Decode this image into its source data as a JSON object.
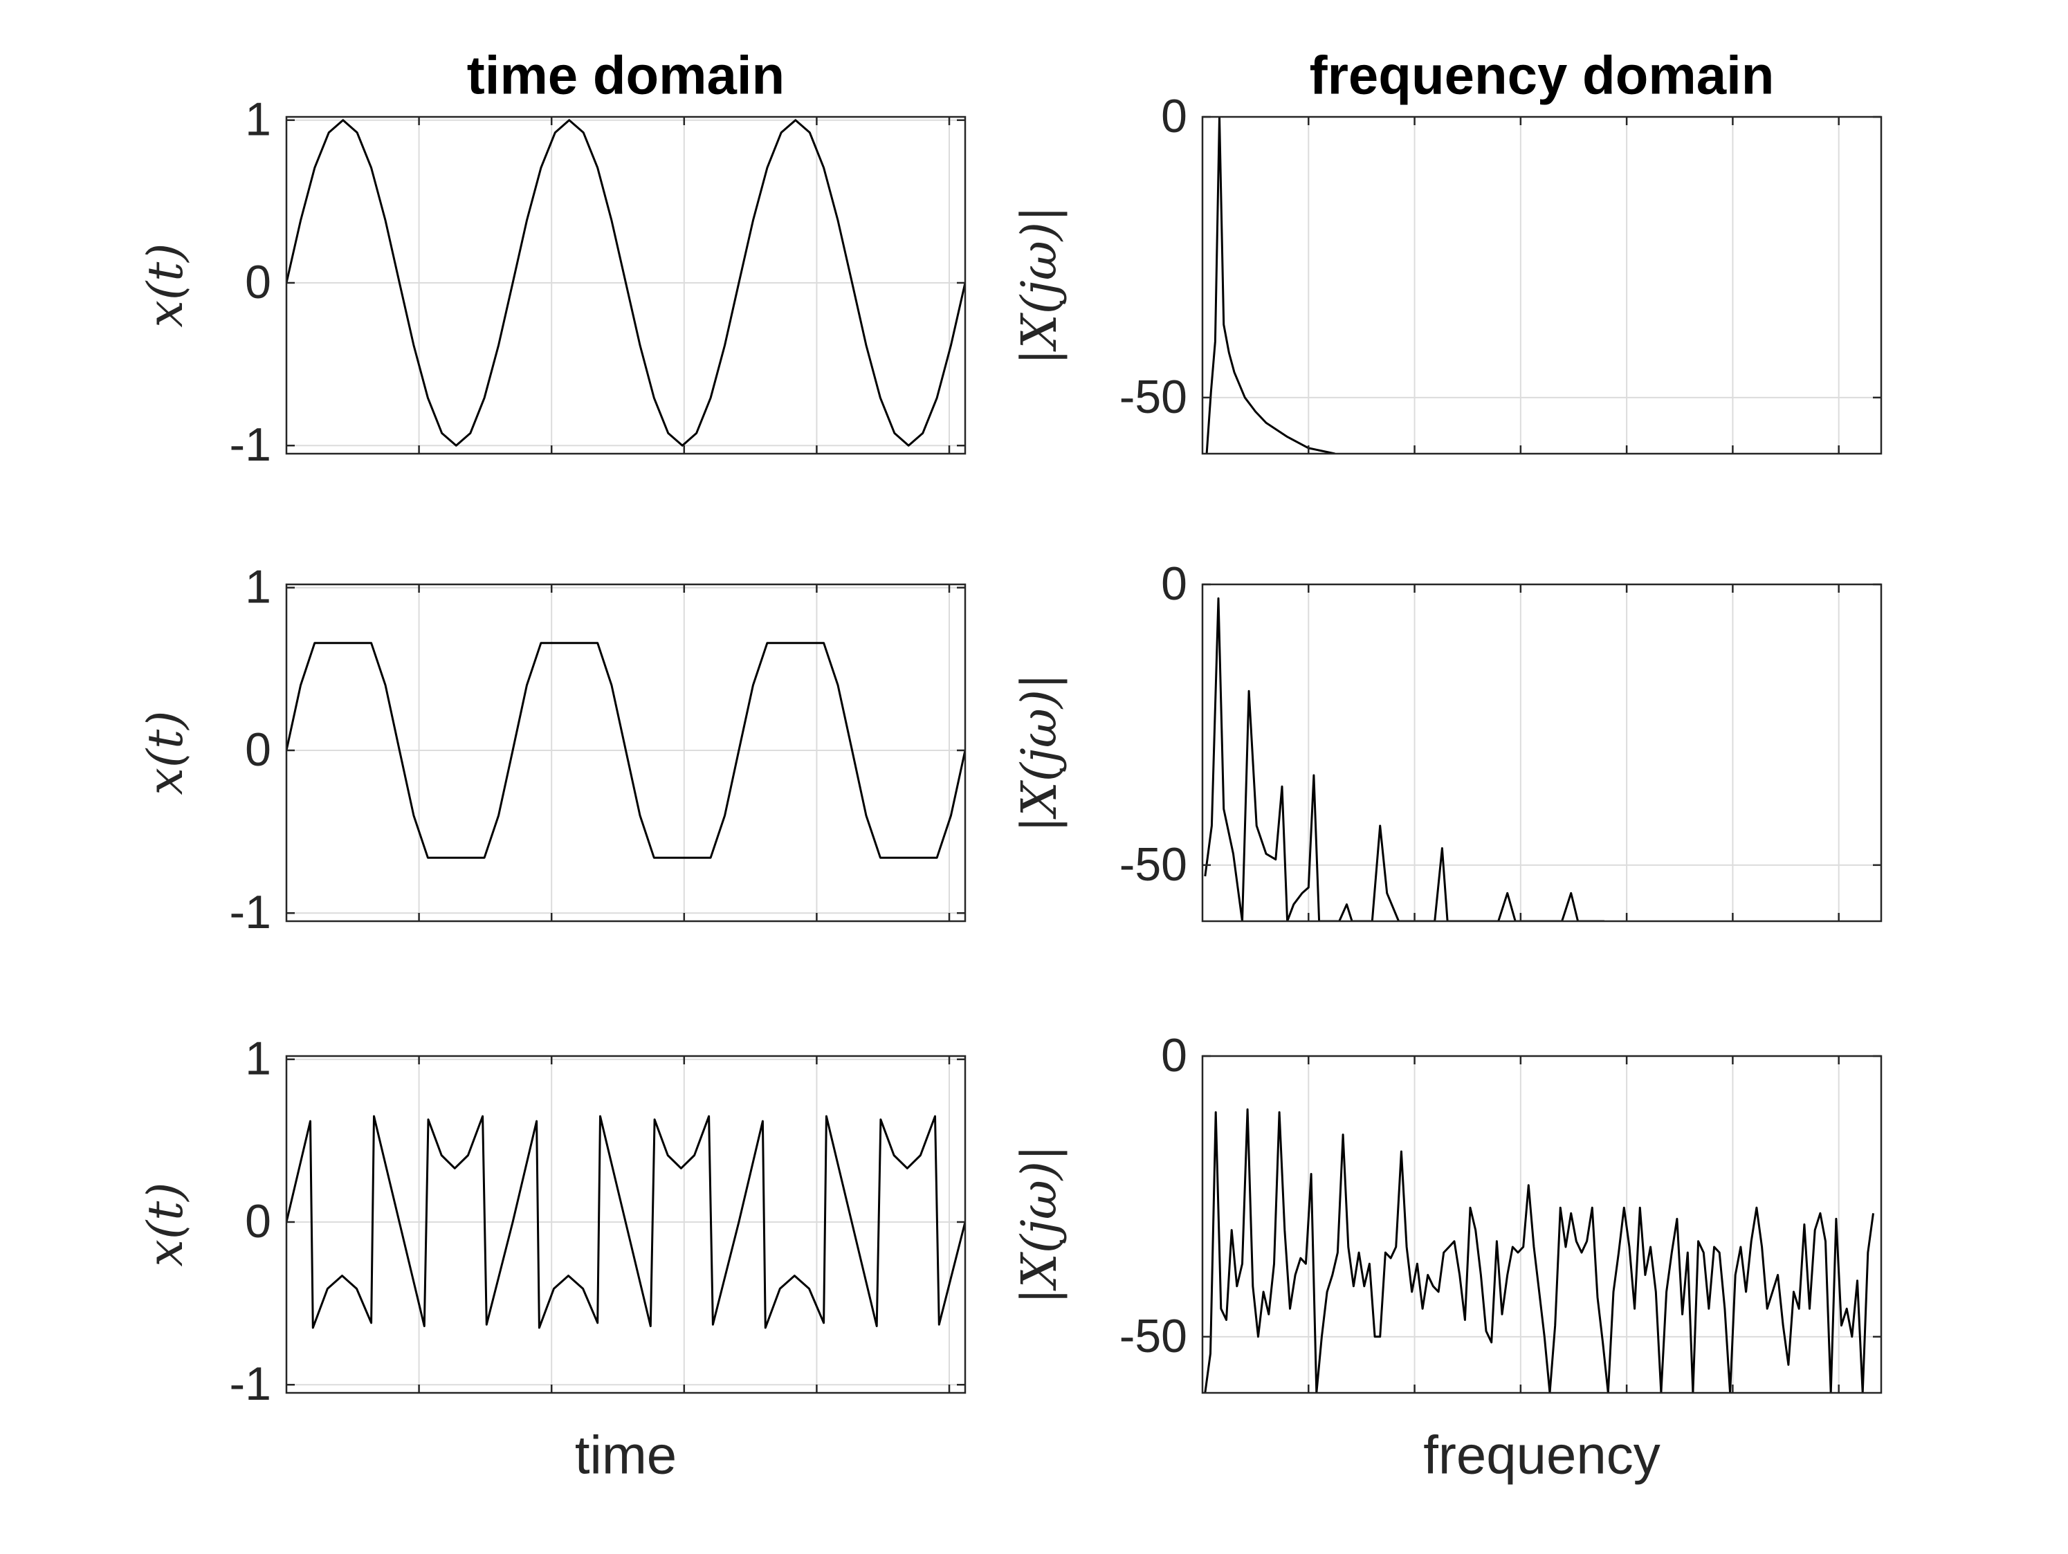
{
  "chart_data": [
    {
      "type": "line",
      "title": "time domain",
      "ylabel": "x(t)",
      "color": "#000000",
      "grid": true,
      "xlim": [
        0,
        5.12
      ],
      "xticks": [
        1,
        2,
        3,
        4,
        5
      ],
      "ylim": [
        -1.05,
        1.02
      ],
      "yticks": [
        -1,
        0,
        1
      ],
      "x": [
        0,
        0.107,
        0.213,
        0.32,
        0.427,
        0.533,
        0.64,
        0.747,
        0.853,
        0.96,
        1.067,
        1.173,
        1.28,
        1.387,
        1.493,
        1.6,
        1.707,
        1.813,
        1.92,
        2.027,
        2.133,
        2.24,
        2.347,
        2.453,
        2.56,
        2.667,
        2.773,
        2.88,
        2.987,
        3.093,
        3.2,
        3.307,
        3.413,
        3.52,
        3.627,
        3.733,
        3.84,
        3.947,
        4.053,
        4.16,
        4.267,
        4.373,
        4.48,
        4.587,
        4.693,
        4.8,
        4.907,
        5.013,
        5.12
      ],
      "values": [
        0,
        0.383,
        0.707,
        0.924,
        1,
        0.924,
        0.707,
        0.383,
        0,
        -0.383,
        -0.707,
        -0.924,
        -1,
        -0.924,
        -0.707,
        -0.383,
        0,
        0.383,
        0.707,
        0.924,
        1,
        0.924,
        0.707,
        0.383,
        0,
        -0.383,
        -0.707,
        -0.924,
        -1,
        -0.924,
        -0.707,
        -0.383,
        0,
        0.383,
        0.707,
        0.924,
        1,
        0.924,
        0.707,
        0.383,
        0,
        -0.383,
        -0.707,
        -0.924,
        -1,
        -0.924,
        -0.707,
        -0.383,
        0
      ]
    },
    {
      "type": "line",
      "title": "frequency domain",
      "ylabel": "|X(jω)|",
      "color": "#000000",
      "grid": true,
      "xlim": [
        0,
        6.4
      ],
      "xticks": [
        1,
        2,
        3,
        4,
        5,
        6
      ],
      "ylim": [
        -60,
        0
      ],
      "yticks": [
        -50,
        0
      ],
      "x": [
        0.04,
        0.08,
        0.12,
        0.16,
        0.2,
        0.25,
        0.3,
        0.4,
        0.5,
        0.6,
        0.8,
        1.0,
        1.25
      ],
      "values": [
        -60,
        -49,
        -40,
        0,
        -37,
        -42,
        -45.5,
        -50,
        -52.5,
        -54.5,
        -57,
        -59,
        -60
      ]
    },
    {
      "type": "line",
      "ylabel": "x(t)",
      "color": "#000000",
      "grid": true,
      "xlim": [
        0,
        5.12
      ],
      "xticks": [
        1,
        2,
        3,
        4,
        5
      ],
      "ylim": [
        -1.05,
        1.02
      ],
      "yticks": [
        -1,
        0,
        1
      ],
      "x": [
        0,
        0.107,
        0.213,
        0.32,
        0.427,
        0.533,
        0.64,
        0.747,
        0.853,
        0.96,
        1.067,
        1.173,
        1.28,
        1.387,
        1.493,
        1.6,
        1.707,
        1.813,
        1.92,
        2.027,
        2.133,
        2.24,
        2.347,
        2.453,
        2.56,
        2.667,
        2.773,
        2.88,
        2.987,
        3.093,
        3.2,
        3.307,
        3.413,
        3.52,
        3.627,
        3.733,
        3.84,
        3.947,
        4.053,
        4.16,
        4.267,
        4.373,
        4.48,
        4.587,
        4.693,
        4.8,
        4.907,
        5.013,
        5.12
      ],
      "values": [
        0,
        0.4,
        0.66,
        0.66,
        0.66,
        0.66,
        0.66,
        0.4,
        0,
        -0.4,
        -0.66,
        -0.66,
        -0.66,
        -0.66,
        -0.66,
        -0.4,
        0,
        0.4,
        0.66,
        0.66,
        0.66,
        0.66,
        0.66,
        0.4,
        0,
        -0.4,
        -0.66,
        -0.66,
        -0.66,
        -0.66,
        -0.66,
        -0.4,
        0,
        0.4,
        0.66,
        0.66,
        0.66,
        0.66,
        0.66,
        0.4,
        0,
        -0.4,
        -0.66,
        -0.66,
        -0.66,
        -0.66,
        -0.66,
        -0.4,
        0
      ]
    },
    {
      "type": "line",
      "ylabel": "|X(jω)|",
      "color": "#000000",
      "grid": true,
      "xlim": [
        0,
        6.4
      ],
      "xticks": [
        1,
        2,
        3,
        4,
        5,
        6
      ],
      "ylim": [
        -60,
        0
      ],
      "yticks": [
        -50,
        0
      ],
      "x": [
        0.025,
        0.0875,
        0.15,
        0.2,
        0.29,
        0.375,
        0.4375,
        0.51,
        0.6,
        0.69,
        0.75,
        0.8,
        0.86,
        0.94,
        1.0,
        1.05,
        1.1,
        1.29,
        1.36,
        1.41,
        1.6,
        1.675,
        1.74,
        1.85,
        2.19,
        2.26,
        2.31,
        2.79,
        2.875,
        2.95,
        3.39,
        3.475,
        3.54,
        3.79
      ],
      "values": [
        -52,
        -43,
        -2.5,
        -40,
        -48,
        -60,
        -19,
        -43,
        -48,
        -49,
        -36,
        -60,
        -57,
        -55,
        -54,
        -34,
        -60,
        -60,
        -57,
        -60,
        -60,
        -43,
        -55,
        -60,
        -60,
        -47,
        -60,
        -60,
        -55,
        -60,
        -60,
        -55,
        -60,
        -60
      ]
    },
    {
      "type": "line",
      "ylabel": "x(t)",
      "xlabel": "time",
      "color": "#000000",
      "grid": true,
      "xlim": [
        0,
        5.12
      ],
      "xticks": [
        1,
        2,
        3,
        4,
        5
      ],
      "ylim": [
        -1.05,
        1.02
      ],
      "yticks": [
        -1,
        0,
        1
      ],
      "x": [
        0,
        0.18,
        0.2,
        0.31,
        0.42,
        0.53,
        0.64,
        0.66,
        1.04,
        1.07,
        1.17,
        1.27,
        1.37,
        1.48,
        1.51,
        1.707,
        1.887,
        1.907,
        2.017,
        2.127,
        2.237,
        2.347,
        2.367,
        2.747,
        2.777,
        2.877,
        2.977,
        3.077,
        3.187,
        3.217,
        3.413,
        3.593,
        3.613,
        3.723,
        3.833,
        3.943,
        4.053,
        4.073,
        4.453,
        4.483,
        4.583,
        4.683,
        4.783,
        4.893,
        4.923,
        5.12
      ],
      "values": [
        0,
        0.62,
        -0.65,
        -0.41,
        -0.33,
        -0.41,
        -0.62,
        0.65,
        -0.64,
        0.63,
        0.41,
        0.33,
        0.41,
        0.65,
        -0.63,
        0,
        0.62,
        -0.65,
        -0.41,
        -0.33,
        -0.41,
        -0.62,
        0.65,
        -0.64,
        0.63,
        0.41,
        0.33,
        0.41,
        0.65,
        -0.63,
        0,
        0.62,
        -0.65,
        -0.41,
        -0.33,
        -0.41,
        -0.62,
        0.65,
        -0.64,
        0.63,
        0.41,
        0.33,
        0.41,
        0.65,
        -0.63,
        0
      ]
    },
    {
      "type": "line",
      "ylabel": "|X(jω)|",
      "xlabel": "frequency",
      "color": "#000000",
      "grid": true,
      "xlim": [
        0,
        6.4
      ],
      "xticks": [
        1,
        2,
        3,
        4,
        5,
        6
      ],
      "ylim": [
        -60,
        0
      ],
      "yticks": [
        -50,
        0
      ],
      "x": [
        0.025,
        0.075,
        0.125,
        0.175,
        0.225,
        0.275,
        0.325,
        0.375,
        0.425,
        0.475,
        0.525,
        0.575,
        0.625,
        0.675,
        0.725,
        0.775,
        0.825,
        0.875,
        0.925,
        0.975,
        1.025,
        1.075,
        1.125,
        1.175,
        1.225,
        1.275,
        1.325,
        1.375,
        1.425,
        1.475,
        1.525,
        1.575,
        1.625,
        1.675,
        1.725,
        1.775,
        1.825,
        1.875,
        1.925,
        1.975,
        2.025,
        2.075,
        2.125,
        2.175,
        2.225,
        2.275,
        2.325,
        2.375,
        2.425,
        2.475,
        2.525,
        2.575,
        2.625,
        2.675,
        2.725,
        2.775,
        2.825,
        2.875,
        2.925,
        2.975,
        3.025,
        3.075,
        3.125,
        3.175,
        3.225,
        3.275,
        3.325,
        3.375,
        3.425,
        3.475,
        3.525,
        3.575,
        3.625,
        3.675,
        3.725,
        3.775,
        3.825,
        3.875,
        3.925,
        3.975,
        4.025,
        4.075,
        4.125,
        4.175,
        4.225,
        4.275,
        4.325,
        4.375,
        4.425,
        4.475,
        4.525,
        4.575,
        4.625,
        4.675,
        4.725,
        4.775,
        4.825,
        4.875,
        4.925,
        4.975,
        5.025,
        5.075,
        5.125,
        5.175,
        5.225,
        5.275,
        5.325,
        5.375,
        5.425,
        5.475,
        5.525,
        5.575,
        5.625,
        5.675,
        5.725,
        5.775,
        5.825,
        5.875,
        5.925,
        5.975,
        6.025,
        6.075,
        6.125,
        6.175,
        6.225,
        6.275,
        6.325
      ],
      "values": [
        -60,
        -53,
        -10,
        -45,
        -47,
        -31,
        -41,
        -37,
        -9.5,
        -41,
        -50,
        -42,
        -46,
        -37,
        -10,
        -31,
        -45,
        -39,
        -36,
        -37,
        -21,
        -60,
        -50,
        -42,
        -39,
        -35,
        -14,
        -34,
        -41,
        -35,
        -41,
        -37,
        -50,
        -50,
        -35,
        -36,
        -34,
        -17,
        -34,
        -42,
        -37,
        -45,
        -39,
        -41,
        -42,
        -35,
        -34,
        -33,
        -39,
        -47,
        -27,
        -31,
        -39,
        -49,
        -51,
        -33,
        -46,
        -39,
        -34,
        -35,
        -34,
        -23,
        -34,
        -42,
        -50,
        -60,
        -48,
        -27,
        -34,
        -28,
        -33,
        -35,
        -33,
        -27,
        -43,
        -51,
        -60,
        -42,
        -35,
        -27,
        -34,
        -45,
        -27,
        -39,
        -34,
        -42,
        -60,
        -42,
        -35,
        -29,
        -46,
        -35,
        -60,
        -33,
        -35,
        -45,
        -34,
        -35,
        -45,
        -60,
        -39,
        -34,
        -42,
        -33,
        -27,
        -34,
        -45,
        -42,
        -39,
        -48,
        -55,
        -42,
        -45,
        -30,
        -45,
        -31,
        -28,
        -33,
        -60,
        -29,
        -48,
        -45,
        -50,
        -40,
        -60,
        -35,
        -28
      ]
    }
  ]
}
